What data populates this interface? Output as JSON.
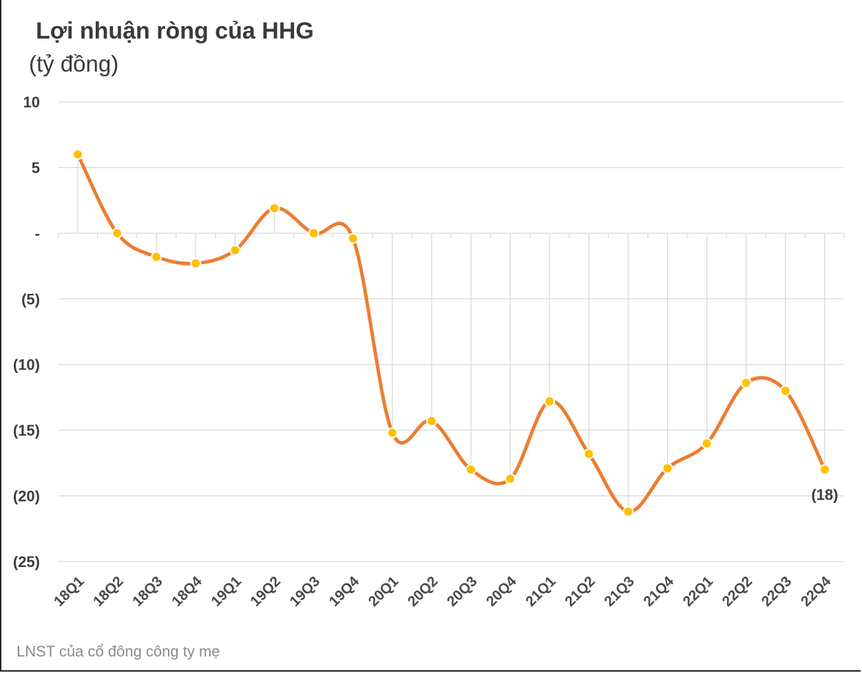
{
  "chart_data": {
    "type": "line",
    "title": "Lợi nhuận ròng của HHG",
    "subtitle": "(tỷ đồng)",
    "footnote": "LNST của cổ đông công ty mẹ",
    "categories": [
      "18Q1",
      "18Q2",
      "18Q3",
      "18Q4",
      "19Q1",
      "19Q2",
      "19Q3",
      "19Q4",
      "20Q1",
      "20Q2",
      "20Q3",
      "20Q4",
      "21Q1",
      "21Q2",
      "21Q3",
      "21Q4",
      "22Q1",
      "22Q2",
      "22Q3",
      "22Q4"
    ],
    "series": [
      {
        "values": [
          6.0,
          0.0,
          -1.8,
          -2.3,
          -1.3,
          1.9,
          0.0,
          -0.4,
          -15.2,
          -14.3,
          -18.0,
          -18.7,
          -12.8,
          -16.8,
          -21.2,
          -17.9,
          -16.0,
          -11.4,
          -12.0,
          -18.0
        ],
        "color": "#ED7D31",
        "marker_color": "#FFC000"
      }
    ],
    "data_labels": [
      {
        "category": "22Q4",
        "text": "(18)"
      }
    ],
    "ylim": [
      -25,
      10
    ],
    "yticks": [
      10,
      5,
      0,
      -5,
      -10,
      -15,
      -20,
      -25
    ],
    "ytick_labels": [
      "10",
      "5",
      "-",
      "(5)",
      "(10)",
      "(15)",
      "(20)",
      "(25)"
    ],
    "grid": true,
    "legend": "none"
  }
}
